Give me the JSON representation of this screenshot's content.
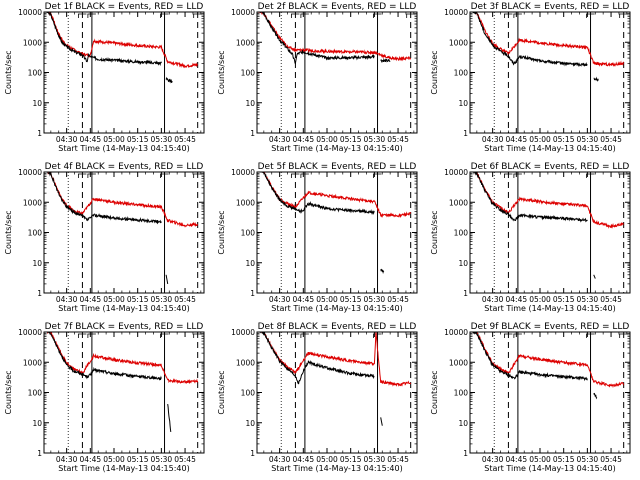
{
  "chart_data": {
    "type": "line",
    "title_template": "Det {det} BLACK = Events, RED = LLD",
    "ylabel": "Counts/sec",
    "xlabel": "Start Time (14-May-13 04:15:40)",
    "y_scale": "log",
    "ylim": [
      1,
      10000
    ],
    "y_ticks": [
      1,
      10,
      100,
      1000,
      10000
    ],
    "y_tick_labels": [
      "1",
      "10",
      "100",
      "1000",
      "10000"
    ],
    "xlim": [
      "04:15:40",
      "05:57:00"
    ],
    "x_ticks": [
      "04:30",
      "04:45",
      "05:00",
      "05:15",
      "05:30",
      "05:45"
    ],
    "grid": false,
    "legend": "none",
    "colors": {
      "events": "#000000",
      "lld": "#dd0000"
    },
    "series_keys": [
      "events",
      "lld"
    ],
    "markers": {
      "dotted": "04:31",
      "dashed": [
        "04:40",
        "05:53"
      ],
      "solid": [
        "04:46",
        "05:32"
      ]
    },
    "panels": [
      {
        "det": "1f",
        "events": [
          [
            "04:15:40",
            12000
          ],
          [
            "04:20",
            8000
          ],
          [
            "04:24",
            2200
          ],
          [
            "04:27",
            1000
          ],
          [
            "04:30",
            720
          ],
          [
            "04:35",
            480
          ],
          [
            "04:40",
            380
          ],
          [
            "04:43",
            230
          ],
          [
            "04:44",
            400
          ],
          [
            "04:45",
            330
          ],
          [
            "04:50",
            280
          ],
          [
            "05:00",
            255
          ],
          [
            "05:15",
            225
          ],
          [
            "05:30",
            205
          ]
        ],
        "lld": [
          [
            "04:15:40",
            12000
          ],
          [
            "04:20",
            9000
          ],
          [
            "04:24",
            2500
          ],
          [
            "04:27",
            1200
          ],
          [
            "04:30",
            800
          ],
          [
            "04:35",
            550
          ],
          [
            "04:40",
            410
          ],
          [
            "04:45",
            360
          ],
          [
            "04:47",
            1100
          ],
          [
            "05:00",
            940
          ],
          [
            "05:15",
            780
          ],
          [
            "05:30",
            680
          ],
          [
            "05:34",
            230
          ],
          [
            "05:45",
            165
          ],
          [
            "05:53",
            180
          ]
        ],
        "events_tail": [
          [
            "05:33",
            60
          ],
          [
            "05:35",
            55
          ],
          [
            "05:37",
            48
          ]
        ]
      },
      {
        "det": "2f",
        "events": [
          [
            "04:15:40",
            12000
          ],
          [
            "04:20",
            9000
          ],
          [
            "04:25",
            3000
          ],
          [
            "04:30",
            1200
          ],
          [
            "04:33",
            800
          ],
          [
            "04:35",
            600
          ],
          [
            "04:38",
            400
          ],
          [
            "04:40",
            200
          ],
          [
            "04:41",
            400
          ],
          [
            "04:43",
            450
          ],
          [
            "04:45",
            480
          ],
          [
            "05:00",
            300
          ],
          [
            "05:15",
            310
          ],
          [
            "05:30",
            330
          ]
        ],
        "lld": [
          [
            "04:15:40",
            12000
          ],
          [
            "04:20",
            9000
          ],
          [
            "04:25",
            3500
          ],
          [
            "04:30",
            1400
          ],
          [
            "04:33",
            950
          ],
          [
            "04:35",
            700
          ],
          [
            "04:38",
            600
          ],
          [
            "04:40",
            550
          ],
          [
            "04:45",
            550
          ],
          [
            "05:00",
            500
          ],
          [
            "05:15",
            480
          ],
          [
            "05:30",
            460
          ],
          [
            "05:38",
            320
          ],
          [
            "05:45",
            280
          ],
          [
            "05:53",
            300
          ]
        ],
        "events_tail": [
          [
            "05:34",
            250
          ],
          [
            "05:40",
            240
          ]
        ]
      },
      {
        "det": "3f",
        "events": [
          [
            "04:15:40",
            12000
          ],
          [
            "04:20",
            9000
          ],
          [
            "04:25",
            2000
          ],
          [
            "04:30",
            800
          ],
          [
            "04:35",
            500
          ],
          [
            "04:40",
            350
          ],
          [
            "04:43",
            200
          ],
          [
            "04:45",
            230
          ],
          [
            "04:47",
            340
          ],
          [
            "05:00",
            240
          ],
          [
            "05:15",
            200
          ],
          [
            "05:30",
            180
          ]
        ],
        "lld": [
          [
            "04:15:40",
            12000
          ],
          [
            "04:20",
            9500
          ],
          [
            "04:25",
            2500
          ],
          [
            "04:30",
            900
          ],
          [
            "04:35",
            600
          ],
          [
            "04:40",
            420
          ],
          [
            "04:47",
            1200
          ],
          [
            "05:00",
            950
          ],
          [
            "05:15",
            780
          ],
          [
            "05:30",
            680
          ],
          [
            "05:34",
            200
          ],
          [
            "05:45",
            180
          ],
          [
            "05:53",
            200
          ]
        ],
        "events_tail": [
          [
            "05:34",
            65
          ],
          [
            "05:37",
            55
          ]
        ]
      },
      {
        "det": "4f",
        "events": [
          [
            "04:15:40",
            12000
          ],
          [
            "04:20",
            8500
          ],
          [
            "04:24",
            2500
          ],
          [
            "04:27",
            1200
          ],
          [
            "04:30",
            700
          ],
          [
            "04:35",
            450
          ],
          [
            "04:40",
            350
          ],
          [
            "04:43",
            260
          ],
          [
            "04:45",
            300
          ],
          [
            "04:47",
            380
          ],
          [
            "05:00",
            300
          ],
          [
            "05:15",
            260
          ],
          [
            "05:30",
            230
          ]
        ],
        "lld": [
          [
            "04:15:40",
            12000
          ],
          [
            "04:20",
            9000
          ],
          [
            "04:24",
            2800
          ],
          [
            "04:27",
            1300
          ],
          [
            "04:30",
            800
          ],
          [
            "04:35",
            500
          ],
          [
            "04:40",
            420
          ],
          [
            "04:47",
            1300
          ],
          [
            "05:00",
            1000
          ],
          [
            "05:15",
            820
          ],
          [
            "05:30",
            700
          ],
          [
            "05:34",
            250
          ],
          [
            "05:45",
            170
          ],
          [
            "05:53",
            190
          ]
        ],
        "events_tail": [
          [
            "05:33",
            4
          ],
          [
            "05:34",
            2
          ]
        ]
      },
      {
        "det": "5f",
        "events": [
          [
            "04:15:40",
            12000
          ],
          [
            "04:20",
            9500
          ],
          [
            "04:25",
            3000
          ],
          [
            "04:30",
            1200
          ],
          [
            "04:35",
            750
          ],
          [
            "04:40",
            600
          ],
          [
            "04:43",
            500
          ],
          [
            "04:45",
            550
          ],
          [
            "04:48",
            900
          ],
          [
            "05:00",
            620
          ],
          [
            "05:15",
            530
          ],
          [
            "05:30",
            470
          ]
        ],
        "lld": [
          [
            "04:15:40",
            12000
          ],
          [
            "04:20",
            10000
          ],
          [
            "04:25",
            3200
          ],
          [
            "04:30",
            1300
          ],
          [
            "04:35",
            900
          ],
          [
            "04:40",
            700
          ],
          [
            "04:48",
            2100
          ],
          [
            "05:00",
            1650
          ],
          [
            "05:15",
            1300
          ],
          [
            "05:30",
            1050
          ],
          [
            "05:34",
            380
          ],
          [
            "05:45",
            360
          ],
          [
            "05:53",
            420
          ]
        ],
        "events_tail": [
          [
            "05:34",
            6
          ],
          [
            "05:36",
            5
          ]
        ]
      },
      {
        "det": "6f",
        "events": [
          [
            "04:15:40",
            12000
          ],
          [
            "04:20",
            9000
          ],
          [
            "04:25",
            2500
          ],
          [
            "04:30",
            900
          ],
          [
            "04:35",
            550
          ],
          [
            "04:40",
            400
          ],
          [
            "04:43",
            250
          ],
          [
            "04:45",
            280
          ],
          [
            "04:47",
            380
          ],
          [
            "05:00",
            320
          ],
          [
            "05:15",
            290
          ],
          [
            "05:30",
            260
          ]
        ],
        "lld": [
          [
            "04:15:40",
            12000
          ],
          [
            "04:20",
            9500
          ],
          [
            "04:25",
            2800
          ],
          [
            "04:30",
            1000
          ],
          [
            "04:35",
            650
          ],
          [
            "04:40",
            450
          ],
          [
            "04:47",
            1300
          ],
          [
            "05:00",
            1050
          ],
          [
            "05:15",
            880
          ],
          [
            "05:30",
            760
          ],
          [
            "05:34",
            220
          ],
          [
            "05:45",
            160
          ],
          [
            "05:53",
            190
          ]
        ],
        "events_tail": [
          [
            "05:34",
            4
          ],
          [
            "05:35",
            3
          ]
        ]
      },
      {
        "det": "7f",
        "events": [
          [
            "04:15:40",
            12000
          ],
          [
            "04:20",
            9000
          ],
          [
            "04:25",
            2500
          ],
          [
            "04:30",
            800
          ],
          [
            "04:35",
            500
          ],
          [
            "04:40",
            400
          ],
          [
            "04:43",
            330
          ],
          [
            "04:45",
            380
          ],
          [
            "04:47",
            560
          ],
          [
            "05:00",
            420
          ],
          [
            "05:15",
            340
          ],
          [
            "05:30",
            290
          ]
        ],
        "lld": [
          [
            "04:15:40",
            12000
          ],
          [
            "04:20",
            9500
          ],
          [
            "04:25",
            2800
          ],
          [
            "04:30",
            900
          ],
          [
            "04:35",
            600
          ],
          [
            "04:40",
            430
          ],
          [
            "04:47",
            1600
          ],
          [
            "05:00",
            1200
          ],
          [
            "05:15",
            950
          ],
          [
            "05:30",
            800
          ],
          [
            "05:34",
            250
          ],
          [
            "05:45",
            220
          ],
          [
            "05:53",
            240
          ]
        ],
        "events_tail": [
          [
            "05:34",
            40
          ],
          [
            "05:36",
            5
          ]
        ]
      },
      {
        "det": "8f",
        "events": [
          [
            "04:15:40",
            12000
          ],
          [
            "04:20",
            9500
          ],
          [
            "04:25",
            3000
          ],
          [
            "04:30",
            1100
          ],
          [
            "04:35",
            600
          ],
          [
            "04:40",
            350
          ],
          [
            "04:42",
            200
          ],
          [
            "04:45",
            500
          ],
          [
            "04:48",
            1000
          ],
          [
            "05:00",
            650
          ],
          [
            "05:15",
            420
          ],
          [
            "05:30",
            340
          ]
        ],
        "lld": [
          [
            "04:15:40",
            12000
          ],
          [
            "04:20",
            10000
          ],
          [
            "04:25",
            3200
          ],
          [
            "04:30",
            1200
          ],
          [
            "04:35",
            700
          ],
          [
            "04:40",
            450
          ],
          [
            "04:48",
            2000
          ],
          [
            "05:00",
            1500
          ],
          [
            "05:15",
            1100
          ],
          [
            "05:30",
            900
          ],
          [
            "05:31",
            10000
          ],
          [
            "05:34",
            230
          ],
          [
            "05:45",
            180
          ],
          [
            "05:53",
            210
          ]
        ],
        "events_tail": [
          [
            "05:34",
            15
          ],
          [
            "05:35",
            8
          ]
        ]
      },
      {
        "det": "9f",
        "events": [
          [
            "04:15:40",
            12000
          ],
          [
            "04:20",
            9000
          ],
          [
            "04:25",
            2500
          ],
          [
            "04:30",
            800
          ],
          [
            "04:35",
            500
          ],
          [
            "04:40",
            380
          ],
          [
            "04:43",
            300
          ],
          [
            "04:45",
            340
          ],
          [
            "04:47",
            470
          ],
          [
            "05:00",
            390
          ],
          [
            "05:15",
            330
          ],
          [
            "05:30",
            290
          ]
        ],
        "lld": [
          [
            "04:15:40",
            12000
          ],
          [
            "04:20",
            9500
          ],
          [
            "04:25",
            2800
          ],
          [
            "04:30",
            900
          ],
          [
            "04:35",
            600
          ],
          [
            "04:40",
            430
          ],
          [
            "04:47",
            1600
          ],
          [
            "05:00",
            1250
          ],
          [
            "05:15",
            980
          ],
          [
            "05:30",
            820
          ],
          [
            "05:34",
            230
          ],
          [
            "05:45",
            170
          ],
          [
            "05:53",
            200
          ]
        ],
        "events_tail": [
          [
            "05:34",
            90
          ],
          [
            "05:36",
            70
          ]
        ]
      }
    ]
  }
}
